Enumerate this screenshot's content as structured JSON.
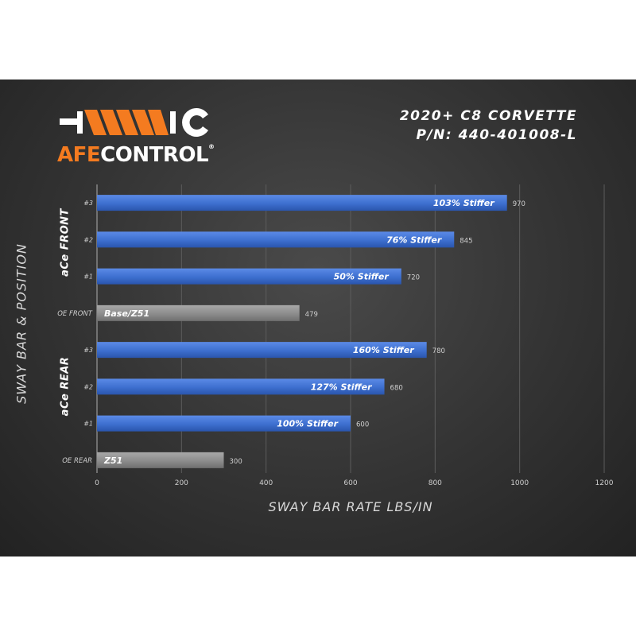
{
  "brand": {
    "word1": "AFE",
    "word2": "CONTROL",
    "registered": "®"
  },
  "header": {
    "line1": "2020+ C8 CORVETTE",
    "line2": "P/N: 440-401008-L"
  },
  "colors": {
    "accent": "#f47b20",
    "ace_bar": "#3d6fcf",
    "oe_bar": "#8c8c8c"
  },
  "groups": {
    "front": "aCe FRONT",
    "rear": "aCe REAR"
  },
  "chart_data": {
    "type": "bar",
    "orientation": "horizontal",
    "title": "",
    "xlabel": "SWAY BAR RATE LBS/IN",
    "ylabel": "SWAY BAR & POSITION",
    "xlim": [
      0,
      1200
    ],
    "xticks": [
      0,
      200,
      400,
      600,
      800,
      1000,
      1200
    ],
    "grid": "vertical",
    "categories": [
      "#3",
      "#2",
      "#1",
      "OE FRONT",
      "#3",
      "#2",
      "#1",
      "OE REAR"
    ],
    "values": [
      970,
      845,
      720,
      479,
      780,
      680,
      600,
      300
    ],
    "bar_labels": [
      "103% Stiffer",
      "76% Stiffer",
      "50% Stiffer",
      "Base/Z51",
      "160% Stiffer",
      "127% Stiffer",
      "100% Stiffer",
      "Z51"
    ],
    "bar_kind": [
      "ace",
      "ace",
      "ace",
      "oe",
      "ace",
      "ace",
      "ace",
      "oe"
    ]
  }
}
